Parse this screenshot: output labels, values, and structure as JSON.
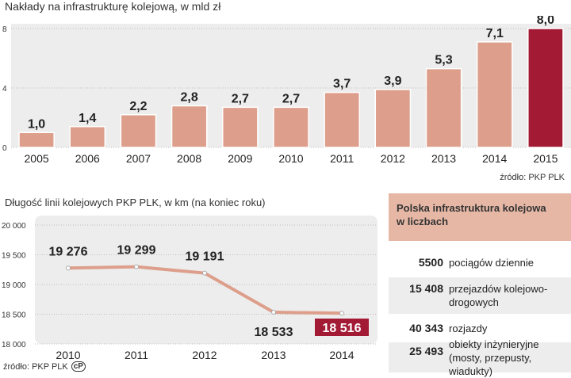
{
  "chart_data": [
    {
      "type": "bar",
      "title": "Nakłady na infrastrukturę kolejową, w mld zł",
      "categories": [
        "2005",
        "2006",
        "2007",
        "2008",
        "2009",
        "2010",
        "2011",
        "2012",
        "2013",
        "2014",
        "2015"
      ],
      "values": [
        1.0,
        1.4,
        2.2,
        2.8,
        2.7,
        2.7,
        3.7,
        3.9,
        5.3,
        7.1,
        8.0
      ],
      "value_labels": [
        "1,0",
        "1,4",
        "2,2",
        "2,8",
        "2,7",
        "2,7",
        "3,7",
        "3,9",
        "5,3",
        "7,1",
        "8,0"
      ],
      "highlight_index": 10,
      "ylim": [
        0,
        8
      ],
      "yticks": [
        "0",
        "4",
        "8"
      ],
      "source": "źródło: PKP PLK",
      "colors": {
        "bar": "#dd9f8b",
        "highlight": "#a31a35",
        "panel": "#ededed"
      }
    },
    {
      "type": "line",
      "title": "Długość linii kolejowych PKP PLK, w km (na koniec roku)",
      "categories": [
        "2010",
        "2011",
        "2012",
        "2013",
        "2014"
      ],
      "values": [
        19276,
        19299,
        19191,
        18533,
        18516
      ],
      "value_labels": [
        "19 276",
        "19 299",
        "19 191",
        "18 533",
        "18 516"
      ],
      "highlight_index": 4,
      "ylim": [
        18000,
        20000
      ],
      "yticks": [
        "18 000",
        "18 500",
        "19 000",
        "19 500",
        "20 000"
      ],
      "source": "źródło: PKP PLK",
      "colors": {
        "line": "#dd9f8b",
        "highlight": "#a31a35",
        "panel": "#ededed"
      }
    }
  ],
  "stats": {
    "heading": "Polska infrastruktura kolejowa w liczbach",
    "rows": [
      {
        "num": "5500",
        "text": "pociągów dziennie"
      },
      {
        "num": "15 408",
        "text": "przejazdów kolejowo-drogowych"
      },
      {
        "num": "40 343",
        "text": "rozjazdy"
      },
      {
        "num": "25 493",
        "text": "obiekty inżynieryjne (mosty, przepusty, wiadukty)"
      }
    ]
  },
  "icons": {
    "license": "cc-icon"
  },
  "license_mark": "cP"
}
